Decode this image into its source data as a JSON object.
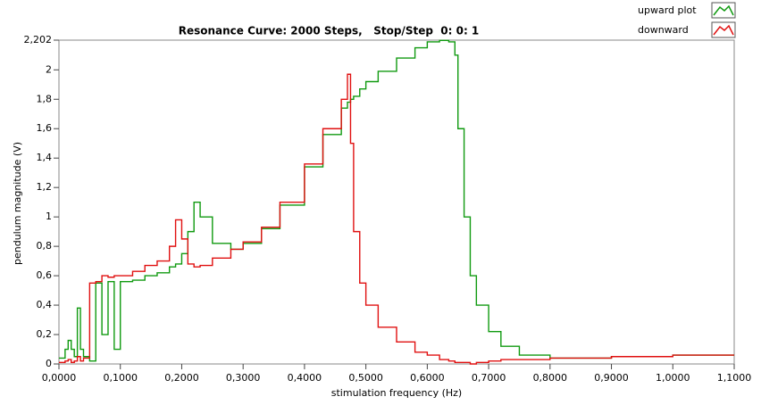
{
  "chart_data": {
    "type": "line",
    "title": "Resonance Curve: 2000 Steps,   Stop/Step  0: 0: 1",
    "x_label": "stimulation frequency (Hz)",
    "y_label": "pendulum  magnitude (V)",
    "legend_position": "top-right",
    "x": [
      0,
      0.01,
      0.015,
      0.02,
      0.025,
      0.03,
      0.035,
      0.04,
      0.05,
      0.06,
      0.07,
      0.08,
      0.09,
      0.1,
      0.12,
      0.14,
      0.16,
      0.18,
      0.19,
      0.2,
      0.21,
      0.22,
      0.23,
      0.25,
      0.28,
      0.3,
      0.33,
      0.36,
      0.4,
      0.43,
      0.46,
      0.47,
      0.475,
      0.48,
      0.49,
      0.5,
      0.52,
      0.55,
      0.58,
      0.6,
      0.62,
      0.635,
      0.645,
      0.65,
      0.66,
      0.67,
      0.68,
      0.7,
      0.72,
      0.75,
      0.8,
      0.9,
      1.0,
      1.1
    ],
    "series": [
      {
        "name": "upward plot",
        "color": "#109a10",
        "values": [
          0.04,
          0.1,
          0.16,
          0.1,
          0.05,
          0.38,
          0.1,
          0.05,
          0.02,
          0.55,
          0.2,
          0.56,
          0.1,
          0.56,
          0.57,
          0.6,
          0.62,
          0.66,
          0.68,
          0.75,
          0.9,
          1.1,
          1.0,
          0.82,
          0.78,
          0.82,
          0.92,
          1.08,
          1.34,
          1.56,
          1.74,
          1.78,
          1.8,
          1.82,
          1.87,
          1.92,
          1.99,
          2.08,
          2.15,
          2.19,
          2.2,
          2.19,
          2.1,
          1.6,
          1.0,
          0.6,
          0.4,
          0.22,
          0.12,
          0.06,
          0.04,
          0.05,
          0.06,
          0.06
        ]
      },
      {
        "name": "downward",
        "color": "#e01010",
        "values": [
          0.01,
          0.02,
          0.03,
          0.01,
          0.02,
          0.05,
          0.02,
          0.04,
          0.55,
          0.56,
          0.6,
          0.59,
          0.6,
          0.6,
          0.63,
          0.67,
          0.7,
          0.8,
          0.98,
          0.85,
          0.68,
          0.66,
          0.67,
          0.72,
          0.78,
          0.83,
          0.93,
          1.1,
          1.36,
          1.6,
          1.8,
          1.97,
          1.5,
          0.9,
          0.55,
          0.4,
          0.25,
          0.15,
          0.08,
          0.06,
          0.03,
          0.02,
          0.01,
          0.01,
          0.01,
          0.0,
          0.01,
          0.02,
          0.03,
          0.03,
          0.04,
          0.05,
          0.06,
          0.06
        ]
      }
    ],
    "xlim": [
      0,
      1.1
    ],
    "xticks": [
      {
        "value": 0,
        "label": "0,0000"
      },
      {
        "value": 0.1,
        "label": "0,1000"
      },
      {
        "value": 0.2,
        "label": "0,2000"
      },
      {
        "value": 0.3,
        "label": "0,3000"
      },
      {
        "value": 0.4,
        "label": "0,4000"
      },
      {
        "value": 0.5,
        "label": "0,5000"
      },
      {
        "value": 0.6,
        "label": "0,6000"
      },
      {
        "value": 0.7,
        "label": "0,7000"
      },
      {
        "value": 0.8,
        "label": "0,8000"
      },
      {
        "value": 0.9,
        "label": "0,9000"
      },
      {
        "value": 1.0,
        "label": "1,0000"
      },
      {
        "value": 1.1,
        "label": "1,1000"
      }
    ],
    "ylim": [
      0,
      2.202
    ],
    "yticks": [
      0,
      {
        "value": 0.2,
        "label": "0,2"
      },
      {
        "value": 0.4,
        "label": "0,4"
      },
      {
        "value": 0.6,
        "label": "0,6"
      },
      {
        "value": 0.8,
        "label": "0,8"
      },
      1,
      {
        "value": 1.2,
        "label": "1,2"
      },
      {
        "value": 1.4,
        "label": "1,4"
      },
      {
        "value": 1.6,
        "label": "1,6"
      },
      {
        "value": 1.8,
        "label": "1,8"
      },
      2,
      {
        "value": 2.202,
        "label": "2,202"
      }
    ]
  }
}
